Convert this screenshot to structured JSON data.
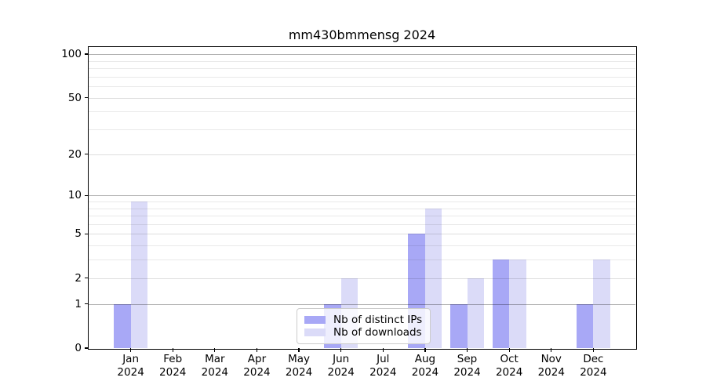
{
  "chart_data": {
    "type": "bar",
    "title": "mm430bmmensg 2024",
    "categories": [
      "Jan",
      "Feb",
      "Mar",
      "Apr",
      "May",
      "Jun",
      "Jul",
      "Aug",
      "Sep",
      "Oct",
      "Nov",
      "Dec"
    ],
    "x_tick_year": "2024",
    "series": [
      {
        "name": "Nb of distinct IPs",
        "color": "#a8a8f6",
        "values": [
          1,
          0,
          0,
          0,
          0,
          1,
          0,
          5,
          1,
          3,
          0,
          1
        ]
      },
      {
        "name": "Nb of downloads",
        "color": "#dbdbf8",
        "values": [
          9,
          0,
          0,
          0,
          0,
          2,
          0,
          8,
          2,
          3,
          0,
          3
        ]
      }
    ],
    "yscale": "log1p",
    "ylim": [
      0,
      112
    ],
    "y_ticks": [
      0,
      1,
      2,
      5,
      10,
      20,
      50,
      100
    ],
    "y_gridlines_minor": [
      3,
      4,
      6,
      7,
      8,
      9,
      30,
      40,
      60,
      70,
      80,
      90
    ],
    "y_gridlines_mid": [
      2,
      5,
      20,
      50
    ],
    "y_gridlines_emphasis": [
      1,
      10,
      100
    ],
    "grid": true,
    "legend_position": "lower-center-inside",
    "background_color": "#ffffff",
    "xlabel": "",
    "ylabel": ""
  }
}
